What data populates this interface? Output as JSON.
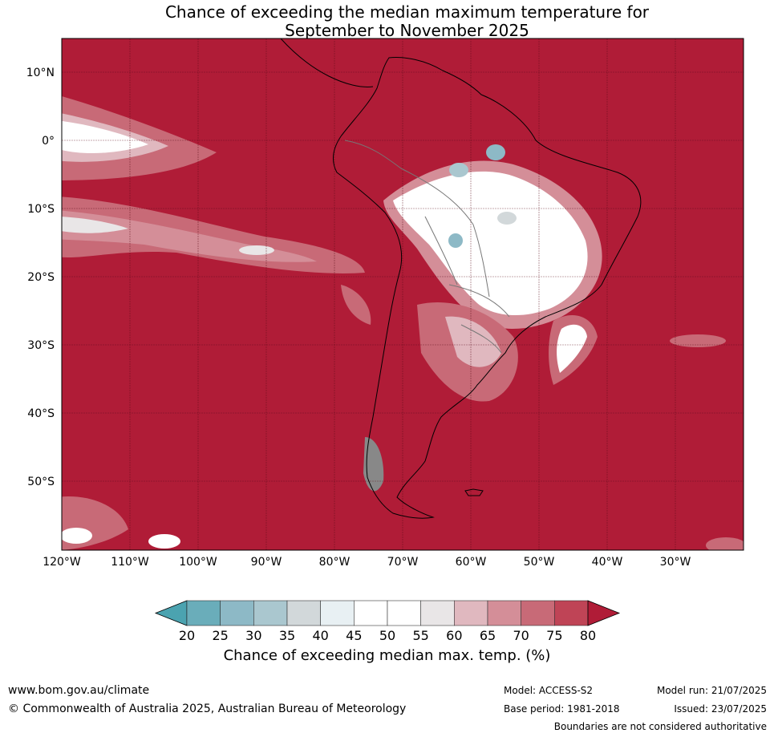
{
  "title": {
    "line1": "Chance of exceeding the median maximum temperature for",
    "line2": "September to November 2025"
  },
  "map": {
    "lat_labels": [
      "10°N",
      "0°",
      "10°S",
      "20°S",
      "30°S",
      "40°S",
      "50°S"
    ],
    "lon_labels": [
      "120°W",
      "110°W",
      "100°W",
      "90°W",
      "80°W",
      "70°W",
      "60°W",
      "50°W",
      "40°W",
      "30°W"
    ],
    "background_color": "#b01c37"
  },
  "colorbar": {
    "ticks": [
      "20",
      "25",
      "30",
      "35",
      "40",
      "45",
      "50",
      "55",
      "60",
      "65",
      "70",
      "75",
      "80"
    ],
    "colors": [
      "#4ba3b0",
      "#6aadba",
      "#8db9c6",
      "#aac7cf",
      "#d2d8da",
      "#e8f0f3",
      "#ffffff",
      "#ffffff",
      "#e9e6e7",
      "#e0b8bf",
      "#d48e98",
      "#c86a77",
      "#bf4456"
    ],
    "under_color": "#4ba3b0",
    "over_color": "#b01c37",
    "label": "Chance of exceeding median max. temp. (%)"
  },
  "footer": {
    "website": "www.bom.gov.au/climate",
    "copyright": "© Commonwealth of Australia 2025, Australian Bureau of Meteorology",
    "model": "Model: ACCESS-S2",
    "base_period": "Base period: 1981-2018",
    "model_run": "Model run: 21/07/2025",
    "issued": "Issued: 23/07/2025",
    "disclaimer": "Boundaries are not considered authoritative"
  }
}
